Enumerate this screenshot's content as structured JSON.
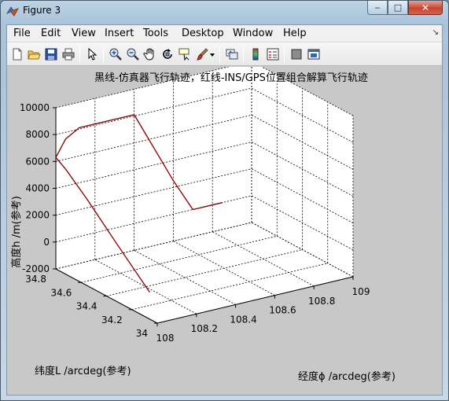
{
  "window": {
    "title": "Figure 3",
    "buttons": {
      "minimize": "‒",
      "maximize": "□",
      "close": "✕"
    }
  },
  "menu": {
    "items": [
      "File",
      "Edit",
      "View",
      "Insert",
      "Tools",
      "Desktop",
      "Window",
      "Help"
    ],
    "arrow": "↘"
  },
  "toolbar": {
    "icons": [
      "new-figure-icon",
      "open-file-icon",
      "save-icon",
      "print-icon",
      "edit-plot-arrow-icon",
      "zoom-in-icon",
      "zoom-out-icon",
      "pan-hand-icon",
      "rotate-3d-icon",
      "data-cursor-icon",
      "brush-icon",
      "brush-dropdown-icon",
      "link-plot-icon",
      "insert-colorbar-icon",
      "insert-legend-icon",
      "hide-plot-tools-icon",
      "show-plot-tools-icon"
    ]
  },
  "colors": {
    "simulator_track": "#000000",
    "ins_gps_track": "#c00000",
    "axes_bg": "#ffffff",
    "figure_bg": "#c8c8c8"
  },
  "chart_data": {
    "type": "line",
    "title": "黑线-仿真器飞行轨迹，红线-INS/GPS位置组合解算飞行轨迹",
    "xlabel": "经度ϕ /arcdeg(参考)",
    "ylabel": "纬度L /arcdeg(参考)",
    "zlabel": "高度h /m(参考)",
    "xlim": [
      108,
      109
    ],
    "ylim": [
      34,
      34.8
    ],
    "zlim": [
      -2000,
      10000
    ],
    "xticks": [
      "108",
      "108.2",
      "108.4",
      "108.6",
      "108.8",
      "109"
    ],
    "yticks": [
      "34",
      "34.2",
      "34.4",
      "34.6",
      "34.8"
    ],
    "zticks": [
      "-2000",
      "0",
      "2000",
      "4000",
      "6000",
      "8000",
      "10000"
    ],
    "grid": true,
    "series": [
      {
        "color": "#000000",
        "lon": [
          108.0,
          108.0,
          108.0,
          108.0,
          108.0,
          108.05,
          108.12,
          108.4,
          108.6,
          108.7,
          108.85
        ],
        "lat": [
          34.06,
          34.32,
          34.55,
          34.72,
          34.8,
          34.8,
          34.8,
          34.8,
          34.8,
          34.8,
          34.8
        ],
        "alt": [
          0,
          2300,
          4400,
          5800,
          6300,
          7500,
          8100,
          8100,
          2500,
          0,
          0
        ]
      },
      {
        "color": "#c00000",
        "lon": [
          108.0,
          108.0,
          108.0,
          108.0,
          108.0,
          108.05,
          108.12,
          108.4,
          108.6,
          108.7,
          108.85
        ],
        "lat": [
          34.06,
          34.32,
          34.55,
          34.72,
          34.8,
          34.8,
          34.8,
          34.8,
          34.8,
          34.8,
          34.8
        ],
        "alt": [
          0,
          2300,
          4400,
          5800,
          6300,
          7500,
          8100,
          8100,
          2500,
          0,
          0
        ]
      }
    ]
  }
}
